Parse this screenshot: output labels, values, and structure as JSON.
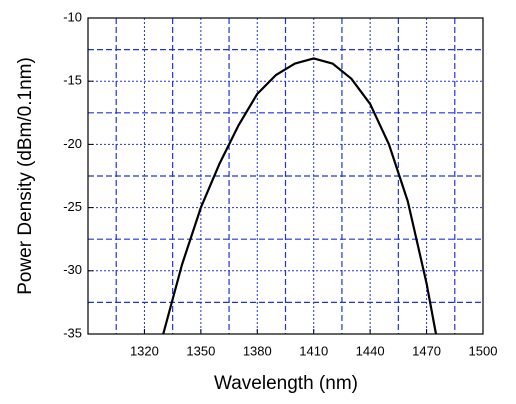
{
  "chart_data": {
    "type": "line",
    "x_label": "Wavelength (nm)",
    "y_label": "Power Density (dBm/0.1nm)",
    "x": [
      1330,
      1340,
      1350,
      1360,
      1370,
      1380,
      1390,
      1400,
      1410,
      1420,
      1430,
      1440,
      1450,
      1460,
      1470,
      1475
    ],
    "series": [
      {
        "color": "#000000",
        "values": [
          -35,
          -29.5,
          -25,
          -21.5,
          -18.5,
          -16,
          -14.5,
          -13.6,
          -13.2,
          -13.6,
          -14.8,
          -16.8,
          -20,
          -24.5,
          -31,
          -35
        ]
      }
    ],
    "xlim": [
      1290,
      1500
    ],
    "xticks": [
      1320,
      1350,
      1380,
      1410,
      1440,
      1470,
      1500
    ],
    "ylim": [
      -35,
      -10
    ],
    "yticks": [
      -35,
      -30,
      -25,
      -20,
      -15,
      -10
    ],
    "grid": true,
    "grid_color": "#2233dd"
  }
}
